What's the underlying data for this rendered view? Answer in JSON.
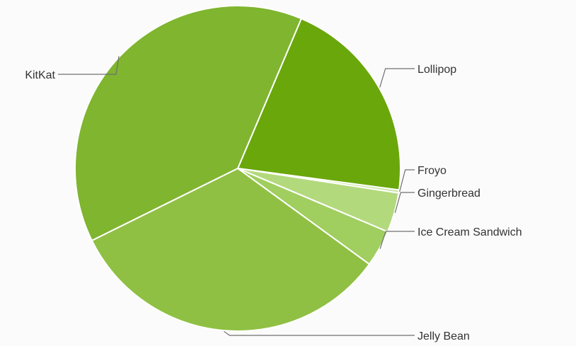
{
  "chart_data": {
    "type": "pie",
    "title": "",
    "legend": "none",
    "slices": [
      {
        "label": "Lollipop",
        "value": 21.0,
        "color": "#6aa70b"
      },
      {
        "label": "Froyo",
        "value": 0.3,
        "color": "#c9e7a3"
      },
      {
        "label": "Gingerbread",
        "value": 4.0,
        "color": "#b3d97d"
      },
      {
        "label": "Ice Cream Sandwich",
        "value": 3.7,
        "color": "#a0ce5f"
      },
      {
        "label": "Jelly Bean",
        "value": 33.1,
        "color": "#8fc043"
      },
      {
        "label": "KitKat",
        "value": 39.2,
        "color": "#7fb52f"
      }
    ]
  }
}
